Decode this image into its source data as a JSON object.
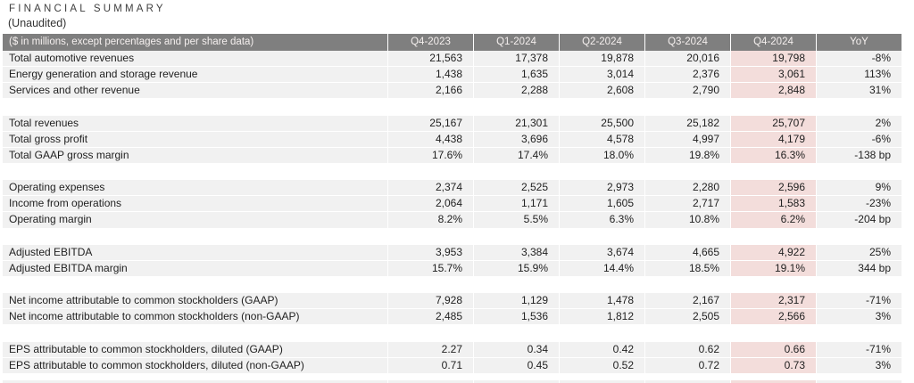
{
  "page": {
    "title": "FINANCIAL SUMMARY",
    "subtitle": "(Unaudited)"
  },
  "colors": {
    "header_background": "#7f7f7f",
    "header_text": "#f4efee",
    "row_background": "#f1f1f1",
    "highlight_column_background": "#f3dddb",
    "body_text": "#1f1f1f"
  },
  "table": {
    "header_label": "($ in millions, except percentages and per share data)",
    "columns": [
      "Q4-2023",
      "Q1-2024",
      "Q2-2024",
      "Q3-2024",
      "Q4-2024",
      "YoY"
    ],
    "highlight_column": "Q4-2024",
    "rows": [
      {
        "label": "Total automotive revenues",
        "values": [
          "21,563",
          "17,378",
          "19,878",
          "20,016",
          "19,798",
          "-8%"
        ]
      },
      {
        "label": "Energy generation and storage revenue",
        "values": [
          "1,438",
          "1,635",
          "3,014",
          "2,376",
          "3,061",
          "113%"
        ]
      },
      {
        "label": "Services and other revenue",
        "values": [
          "2,166",
          "2,288",
          "2,608",
          "2,790",
          "2,848",
          "31%"
        ]
      },
      {
        "type": "spacer"
      },
      {
        "label": "Total revenues",
        "values": [
          "25,167",
          "21,301",
          "25,500",
          "25,182",
          "25,707",
          "2%"
        ]
      },
      {
        "label": "Total gross profit",
        "values": [
          "4,438",
          "3,696",
          "4,578",
          "4,997",
          "4,179",
          "-6%"
        ]
      },
      {
        "label": "Total GAAP gross margin",
        "values": [
          "17.6%",
          "17.4%",
          "18.0%",
          "19.8%",
          "16.3%",
          "-138 bp"
        ]
      },
      {
        "type": "spacer"
      },
      {
        "label": "Operating expenses",
        "values": [
          "2,374",
          "2,525",
          "2,973",
          "2,280",
          "2,596",
          "9%"
        ]
      },
      {
        "label": "Income from operations",
        "values": [
          "2,064",
          "1,171",
          "1,605",
          "2,717",
          "1,583",
          "-23%"
        ]
      },
      {
        "label": "Operating margin",
        "values": [
          "8.2%",
          "5.5%",
          "6.3%",
          "10.8%",
          "6.2%",
          "-204 bp"
        ]
      },
      {
        "type": "spacer"
      },
      {
        "label": "Adjusted EBITDA",
        "values": [
          "3,953",
          "3,384",
          "3,674",
          "4,665",
          "4,922",
          "25%"
        ]
      },
      {
        "label": "Adjusted EBITDA margin",
        "values": [
          "15.7%",
          "15.9%",
          "14.4%",
          "18.5%",
          "19.1%",
          "344 bp"
        ]
      },
      {
        "type": "spacer"
      },
      {
        "label": "Net income attributable to common stockholders (GAAP)",
        "values": [
          "7,928",
          "1,129",
          "1,478",
          "2,167",
          "2,317",
          "-71%"
        ]
      },
      {
        "label": "Net income attributable to common stockholders (non-GAAP)",
        "values": [
          "2,485",
          "1,536",
          "1,812",
          "2,505",
          "2,566",
          "3%"
        ]
      },
      {
        "type": "spacer"
      },
      {
        "label": "EPS attributable to common stockholders, diluted (GAAP)",
        "values": [
          "2.27",
          "0.34",
          "0.42",
          "0.62",
          "0.66",
          "-71%"
        ]
      },
      {
        "label": "EPS attributable to common stockholders, diluted (non-GAAP)",
        "values": [
          "0.71",
          "0.45",
          "0.52",
          "0.72",
          "0.73",
          "3%"
        ]
      }
    ]
  }
}
